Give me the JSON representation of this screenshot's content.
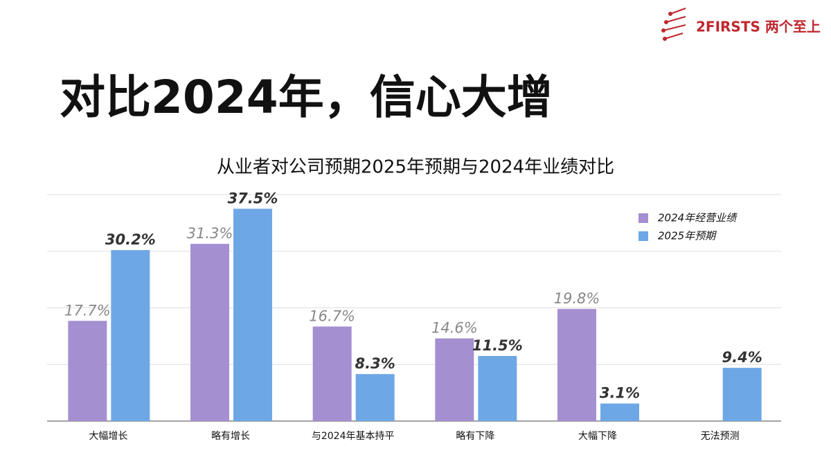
{
  "header": {
    "logo": "2FIRSTS 两个至上",
    "title": "对比2024年，信心大增"
  },
  "chart_data": {
    "type": "bar",
    "title": "从业者对公司预期2025年预期与2024年业绩对比",
    "categories": [
      "大幅增长",
      "略有增长",
      "与2024年基本持平",
      "略有下降",
      "大幅下降",
      "无法预测"
    ],
    "series": [
      {
        "name": "2024年经营业绩",
        "color": "#a48fd1",
        "values": [
          17.7,
          31.3,
          16.7,
          14.6,
          19.8,
          null
        ],
        "value_labels": [
          "17.7%",
          "31.3%",
          "16.7%",
          "14.6%",
          "19.8%",
          null
        ]
      },
      {
        "name": "2025年预期",
        "color": "#6ea7e6",
        "values": [
          30.2,
          37.5,
          8.3,
          11.5,
          3.1,
          9.4
        ],
        "value_labels": [
          "30.2%",
          "37.5%",
          "8.3%",
          "11.5%",
          "3.1%",
          "9.4%"
        ]
      }
    ],
    "ylim": [
      0,
      40
    ],
    "yticks": [
      0,
      10,
      20,
      30,
      40
    ],
    "grid": true,
    "legend": "top-right"
  }
}
